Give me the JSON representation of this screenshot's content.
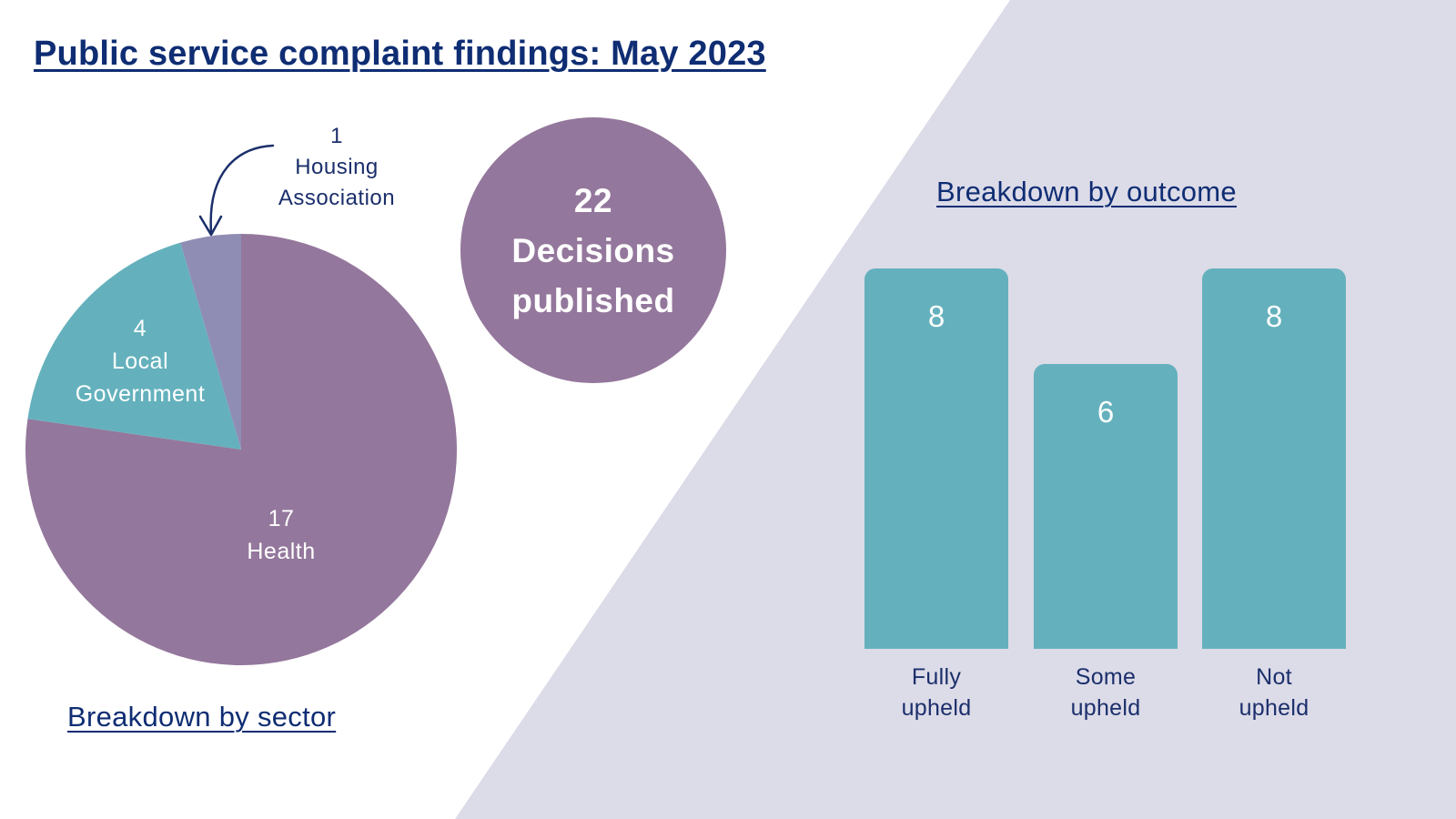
{
  "title": "Public service complaint findings: May 2023",
  "colors": {
    "background_panel": "#dcdbe8",
    "health": "#94779c",
    "local_government": "#64b1bd",
    "housing_association": "#8f8db4",
    "bars": "#64b1bd",
    "text_dark": "#0f2d73"
  },
  "decisions": {
    "count": "22",
    "line1": "Decisions",
    "line2": "published"
  },
  "sector_heading": "Breakdown by sector",
  "outcome_heading": "Breakdown by outcome",
  "pie_labels": {
    "local": {
      "value": "4",
      "line1": "Local",
      "line2": "Government"
    },
    "health": {
      "value": "17",
      "line1": "Health"
    },
    "housing": {
      "value": "1",
      "line1": "Housing",
      "line2": "Association"
    }
  },
  "bar_labels": {
    "fully": {
      "value": "8",
      "line1": "Fully",
      "line2": "upheld"
    },
    "some": {
      "value": "6",
      "line1": "Some",
      "line2": "upheld"
    },
    "not": {
      "value": "8",
      "line1": "Not",
      "line2": "upheld"
    }
  },
  "chart_data": [
    {
      "type": "pie",
      "title": "Breakdown by sector",
      "categories": [
        "Health",
        "Local Government",
        "Housing Association"
      ],
      "values": [
        17,
        4,
        1
      ],
      "colors": [
        "#94779c",
        "#64b1bd",
        "#8f8db4"
      ]
    },
    {
      "type": "bar",
      "title": "Breakdown by outcome",
      "categories": [
        "Fully upheld",
        "Some upheld",
        "Not upheld"
      ],
      "values": [
        8,
        6,
        8
      ],
      "ylim": [
        0,
        8
      ],
      "grid": false,
      "color": "#64b1bd"
    }
  ]
}
